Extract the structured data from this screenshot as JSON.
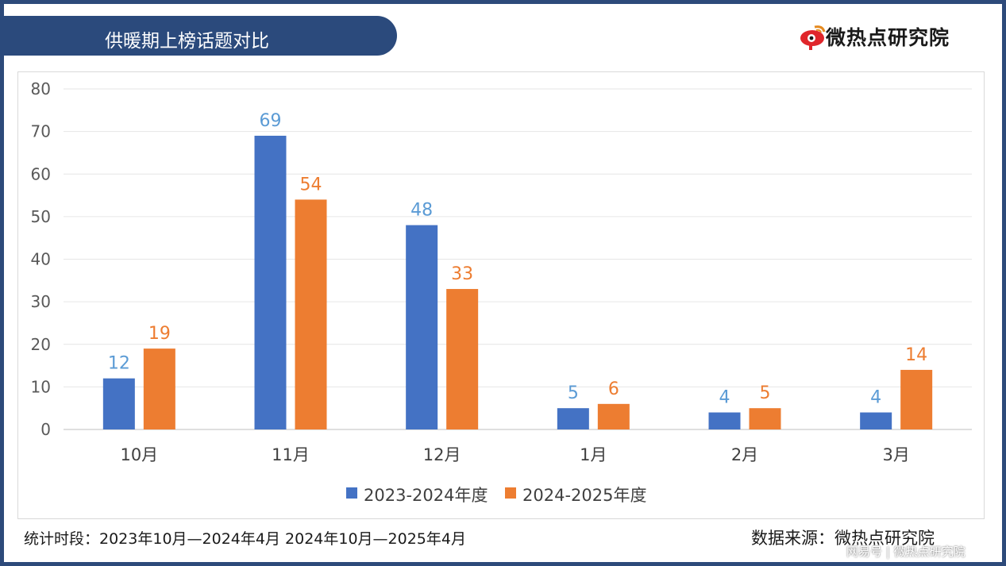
{
  "header": {
    "title": "供暖期上榜话题对比"
  },
  "brand": {
    "logo_text": "微热点研究院",
    "logo_icon": "weibo-eye-icon",
    "logo_color": "#e0262b"
  },
  "footer": {
    "period": "统计时段：2023年10月—2024年4月 2024年10月—2025年4月",
    "source": "数据来源：微热点研究院",
    "watermark": "网易号 | 微热点研究院"
  },
  "chart_data": {
    "type": "bar",
    "categories": [
      "10月",
      "11月",
      "12月",
      "1月",
      "2月",
      "3月"
    ],
    "series": [
      {
        "name": "2023-2024年度",
        "values": [
          12,
          69,
          48,
          5,
          4,
          4
        ],
        "color": "#4472c4",
        "label_color": "#5b9bd5"
      },
      {
        "name": "2024-2025年度",
        "values": [
          19,
          54,
          33,
          6,
          5,
          14
        ],
        "color": "#ed7d31",
        "label_color": "#ed7d31"
      }
    ],
    "ylim": [
      0,
      80
    ],
    "yticks": [
      0,
      10,
      20,
      30,
      40,
      50,
      60,
      70,
      80
    ],
    "grid": true,
    "legend": "bottom-center",
    "title": "",
    "xlabel": "",
    "ylabel": ""
  }
}
